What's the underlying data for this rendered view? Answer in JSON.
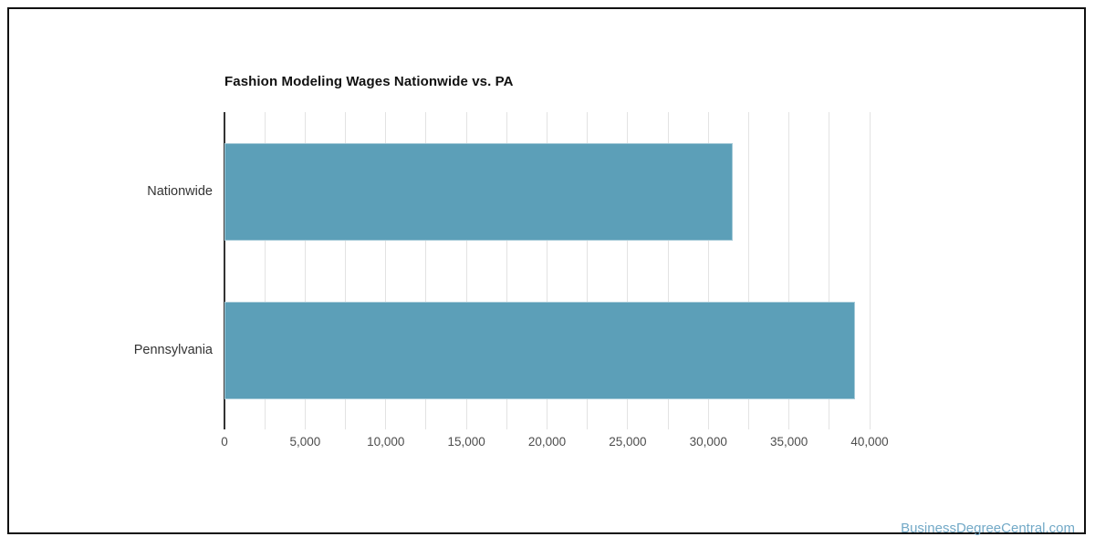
{
  "page": {
    "watermark": "BusinessDegreeCentral.com"
  },
  "chart_data": {
    "type": "bar",
    "orientation": "horizontal",
    "title": "Fashion Modeling Wages Nationwide vs. PA",
    "categories": [
      "Nationwide",
      "Pennsylvania"
    ],
    "values": [
      31500,
      39100
    ],
    "xlabel": "",
    "ylabel": "",
    "xlim": [
      0,
      40000
    ],
    "x_major_tick_step": 5000,
    "x_minor_grid_step": 2500,
    "x_tick_labels": [
      "0",
      "5,000",
      "10,000",
      "15,000",
      "20,000",
      "25,000",
      "30,000",
      "35,000",
      "40,000"
    ],
    "grid": true,
    "legend": false,
    "colors": {
      "bar": "#5C9FB8",
      "grid": "#e3e3e3",
      "zero_line": "#333333",
      "tick_label": "#4d4d4d",
      "category_label": "#333333",
      "title": "#111111",
      "watermark": "#72A9C7",
      "frame_border": "#111111"
    }
  }
}
